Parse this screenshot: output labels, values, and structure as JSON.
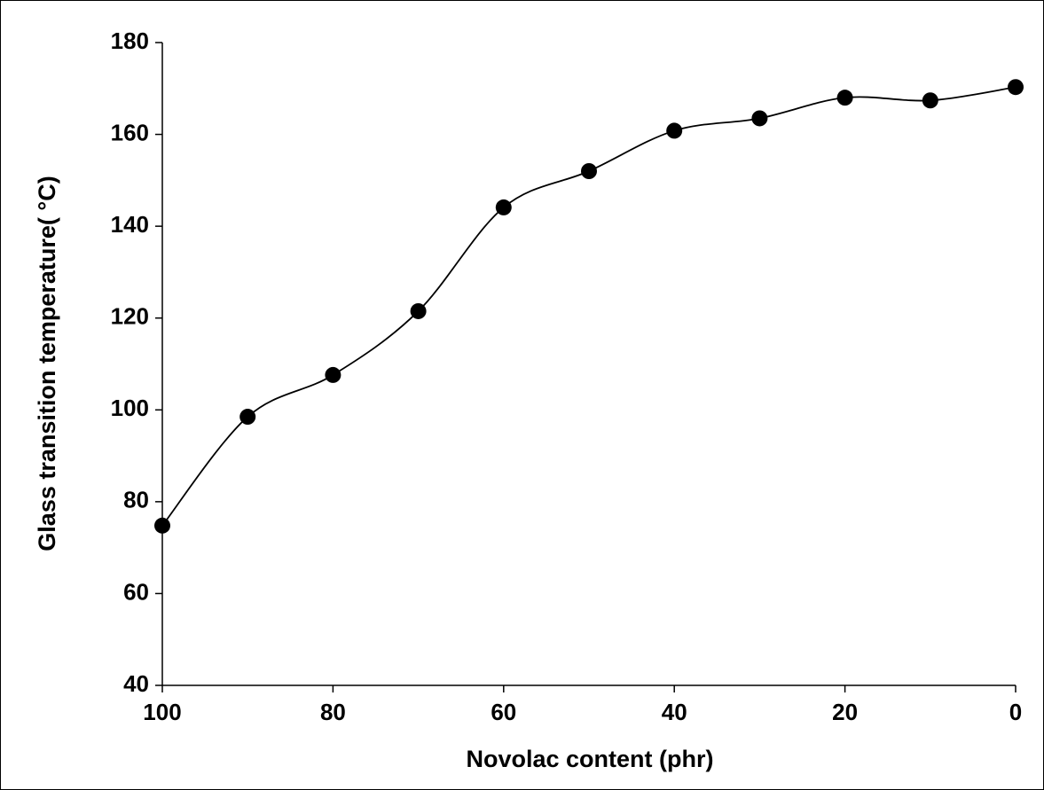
{
  "chart_data": {
    "type": "line",
    "x_label": "Novolac content (phr)",
    "y_label": "Glass transition temperature( °C)",
    "x": [
      100,
      90,
      80,
      70,
      60,
      50,
      40,
      30,
      20,
      10,
      0
    ],
    "series": [
      {
        "color": "#000000",
        "values": [
          74.8,
          98.5,
          107.6,
          121.5,
          144.1,
          152,
          160.8,
          163.5,
          168,
          167.4,
          170.3
        ]
      }
    ],
    "xlim": [
      100,
      0
    ],
    "xticks": [
      100,
      80,
      60,
      40,
      20,
      0
    ],
    "ylim": [
      40,
      180
    ],
    "yticks": [
      40,
      60,
      80,
      100,
      120,
      140,
      160,
      180
    ],
    "grid": false,
    "smooth": true
  }
}
